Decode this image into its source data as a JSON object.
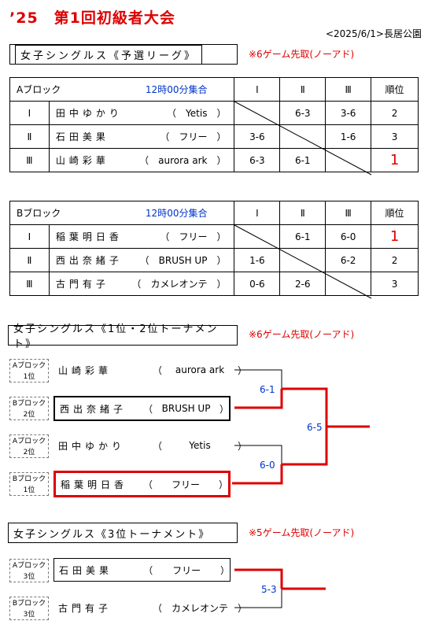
{
  "event": {
    "title": "’25　第1回初級者大会",
    "date_place": "<2025/6/1>長居公園"
  },
  "league": {
    "title": "女子シングルス《予選リーグ》",
    "note": "※6ゲーム先取(ノーアド)",
    "headers": {
      "i": "Ⅰ",
      "ii": "Ⅱ",
      "iii": "Ⅲ",
      "rank": "順位"
    },
    "blocks": [
      {
        "name": "Aブロック",
        "gather": "12時00分集合",
        "rows": [
          {
            "num": "Ⅰ",
            "player": "田中ゆかり",
            "club": "Yetis",
            "r1": "",
            "r2": "6-3",
            "r3": "3-6",
            "rank": "2"
          },
          {
            "num": "Ⅱ",
            "player": "石田美果",
            "club": "フリー",
            "r1": "3-6",
            "r2": "",
            "r3": "1-6",
            "rank": "3"
          },
          {
            "num": "Ⅲ",
            "player": "山崎彩華",
            "club": "aurora ark",
            "r1": "6-3",
            "r2": "6-1",
            "r3": "",
            "rank": "1"
          }
        ]
      },
      {
        "name": "Bブロック",
        "gather": "12時00分集合",
        "rows": [
          {
            "num": "Ⅰ",
            "player": "稲葉明日香",
            "club": "フリー",
            "r1": "",
            "r2": "6-1",
            "r3": "6-0",
            "rank": "1"
          },
          {
            "num": "Ⅱ",
            "player": "西出奈緒子",
            "club": "BRUSH UP",
            "r1": "1-6",
            "r2": "",
            "r3": "6-2",
            "rank": "2"
          },
          {
            "num": "Ⅲ",
            "player": "古門有子",
            "club": "カメレオンテ",
            "r1": "0-6",
            "r2": "2-6",
            "r3": "",
            "rank": "3"
          }
        ]
      }
    ]
  },
  "tournament": {
    "title": "女子シングルス《1位・2位トーナメント》",
    "note": "※6ゲーム先取(ノーアド)",
    "entries": [
      {
        "slot1": "Aブロック",
        "slot2": "1位",
        "player": "山崎彩華",
        "club": "aurora ark"
      },
      {
        "slot1": "Bブロック",
        "slot2": "2位",
        "player": "西出奈緒子",
        "club": "BRUSH UP"
      },
      {
        "slot1": "Aブロック",
        "slot2": "2位",
        "player": "田中ゆかり",
        "club": "Yetis"
      },
      {
        "slot1": "Bブロック",
        "slot2": "1位",
        "player": "稲葉明日香",
        "club": "フリー"
      }
    ],
    "scores": {
      "semi1": "6-1",
      "semi2": "6-0",
      "final": "6-5"
    }
  },
  "third": {
    "title": "女子シングルス《3位トーナメント》",
    "note": "※5ゲーム先取(ノーアド)",
    "entries": [
      {
        "slot1": "Aブロック",
        "slot2": "3位",
        "player": "石田美果",
        "club": "フリー"
      },
      {
        "slot1": "Bブロック",
        "slot2": "3位",
        "player": "古門有子",
        "club": "カメレオンテ"
      }
    ],
    "scores": {
      "final": "5-3"
    }
  },
  "colors": {
    "accent": "#dd0000",
    "blue": "#0033cc"
  }
}
